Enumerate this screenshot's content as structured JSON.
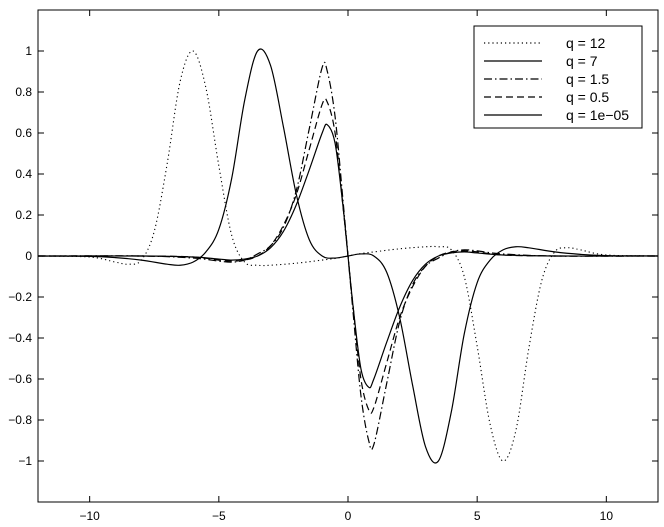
{
  "chart_data": {
    "type": "line",
    "xlim": [
      -12,
      12
    ],
    "ylim": [
      -1.2,
      1.2
    ],
    "x_ticks": [
      -10,
      -5,
      0,
      5,
      10
    ],
    "y_ticks": [
      -1,
      -0.8,
      -0.6,
      -0.4,
      -0.2,
      0,
      0.2,
      0.4,
      0.6,
      0.8,
      1
    ],
    "x_tick_labels": [
      "−10",
      "−5",
      "0",
      "5",
      "10"
    ],
    "y_tick_labels": [
      "−1",
      "−0.8",
      "−0.6",
      "−0.4",
      "−0.2",
      "0",
      "0.2",
      "0.4",
      "0.6",
      "0.8",
      "1"
    ],
    "grid": false,
    "legend_position": "top-right",
    "series": [
      {
        "name": "q = 12",
        "style": "dotted",
        "points": [
          [
            -12,
            0
          ],
          [
            -10,
            -0.005
          ],
          [
            -9,
            -0.03
          ],
          [
            -8.5,
            -0.04
          ],
          [
            -8,
            -0.02
          ],
          [
            -7.5,
            0.12
          ],
          [
            -7,
            0.45
          ],
          [
            -6.5,
            0.85
          ],
          [
            -6,
            1.0
          ],
          [
            -5.5,
            0.82
          ],
          [
            -5,
            0.44
          ],
          [
            -4.5,
            0.1
          ],
          [
            -4,
            -0.03
          ],
          [
            -3.5,
            -0.045
          ],
          [
            -3,
            -0.045
          ],
          [
            -2,
            -0.035
          ],
          [
            -1,
            -0.02
          ],
          [
            -0.5,
            -0.012
          ],
          [
            0,
            0
          ],
          [
            0.5,
            0.012
          ],
          [
            1,
            0.02
          ],
          [
            2,
            0.035
          ],
          [
            3,
            0.045
          ],
          [
            3.5,
            0.045
          ],
          [
            4,
            0.03
          ],
          [
            4.5,
            -0.1
          ],
          [
            5,
            -0.44
          ],
          [
            5.5,
            -0.82
          ],
          [
            6,
            -1.0
          ],
          [
            6.5,
            -0.85
          ],
          [
            7,
            -0.45
          ],
          [
            7.5,
            -0.12
          ],
          [
            8,
            0.02
          ],
          [
            8.5,
            0.04
          ],
          [
            9,
            0.03
          ],
          [
            10,
            0.005
          ],
          [
            12,
            0
          ]
        ]
      },
      {
        "name": "q = 7",
        "style": "solid",
        "points": [
          [
            -12,
            0
          ],
          [
            -10,
            -0.002
          ],
          [
            -9,
            -0.008
          ],
          [
            -8,
            -0.02
          ],
          [
            -7,
            -0.04
          ],
          [
            -6.5,
            -0.045
          ],
          [
            -6,
            -0.03
          ],
          [
            -5.5,
            0.02
          ],
          [
            -5,
            0.13
          ],
          [
            -4.5,
            0.38
          ],
          [
            -4,
            0.76
          ],
          [
            -3.5,
            1.0
          ],
          [
            -3,
            0.93
          ],
          [
            -2.5,
            0.63
          ],
          [
            -2,
            0.3
          ],
          [
            -1.5,
            0.08
          ],
          [
            -1,
            0.0
          ],
          [
            -0.5,
            -0.01
          ],
          [
            0,
            0
          ],
          [
            0.5,
            0.01
          ],
          [
            1,
            0.0
          ],
          [
            1.5,
            -0.08
          ],
          [
            2,
            -0.3
          ],
          [
            2.5,
            -0.63
          ],
          [
            3,
            -0.93
          ],
          [
            3.5,
            -1.0
          ],
          [
            4,
            -0.76
          ],
          [
            4.5,
            -0.38
          ],
          [
            5,
            -0.13
          ],
          [
            5.5,
            -0.02
          ],
          [
            6,
            0.03
          ],
          [
            6.5,
            0.045
          ],
          [
            7,
            0.04
          ],
          [
            8,
            0.02
          ],
          [
            9,
            0.008
          ],
          [
            10,
            0.002
          ],
          [
            12,
            0
          ]
        ]
      },
      {
        "name": "q = 1.5",
        "style": "dashdot",
        "points": [
          [
            -12,
            0
          ],
          [
            -8,
            0
          ],
          [
            -6,
            -0.01
          ],
          [
            -5,
            -0.025
          ],
          [
            -4.5,
            -0.03
          ],
          [
            -4,
            -0.02
          ],
          [
            -3.5,
            0.01
          ],
          [
            -3,
            0.05
          ],
          [
            -2.5,
            0.14
          ],
          [
            -2,
            0.32
          ],
          [
            -1.5,
            0.62
          ],
          [
            -1,
            0.92
          ],
          [
            -0.8,
            0.9
          ],
          [
            -0.5,
            0.68
          ],
          [
            -0.2,
            0.28
          ],
          [
            0,
            0
          ],
          [
            0.2,
            -0.28
          ],
          [
            0.5,
            -0.68
          ],
          [
            0.8,
            -0.9
          ],
          [
            1,
            -0.92
          ],
          [
            1.5,
            -0.62
          ],
          [
            2,
            -0.32
          ],
          [
            2.5,
            -0.14
          ],
          [
            3,
            -0.05
          ],
          [
            3.5,
            -0.01
          ],
          [
            4,
            0.02
          ],
          [
            4.5,
            0.03
          ],
          [
            5,
            0.025
          ],
          [
            6,
            0.01
          ],
          [
            8,
            0
          ],
          [
            12,
            0
          ]
        ]
      },
      {
        "name": "q = 0.5",
        "style": "dashed",
        "points": [
          [
            -12,
            0
          ],
          [
            -8,
            0
          ],
          [
            -6,
            -0.005
          ],
          [
            -5,
            -0.02
          ],
          [
            -4.5,
            -0.025
          ],
          [
            -4,
            -0.02
          ],
          [
            -3.5,
            0.0
          ],
          [
            -3,
            0.05
          ],
          [
            -2.5,
            0.15
          ],
          [
            -2,
            0.3
          ],
          [
            -1.5,
            0.52
          ],
          [
            -1,
            0.74
          ],
          [
            -0.8,
            0.75
          ],
          [
            -0.5,
            0.6
          ],
          [
            -0.2,
            0.25
          ],
          [
            0,
            0
          ],
          [
            0.2,
            -0.25
          ],
          [
            0.5,
            -0.6
          ],
          [
            0.8,
            -0.75
          ],
          [
            1,
            -0.74
          ],
          [
            1.5,
            -0.52
          ],
          [
            2,
            -0.3
          ],
          [
            2.5,
            -0.15
          ],
          [
            3,
            -0.05
          ],
          [
            3.5,
            0.0
          ],
          [
            4,
            0.02
          ],
          [
            4.5,
            0.025
          ],
          [
            5,
            0.02
          ],
          [
            6,
            0.005
          ],
          [
            8,
            0
          ],
          [
            12,
            0
          ]
        ]
      },
      {
        "name": "q = 1e−05",
        "style": "solid",
        "points": [
          [
            -12,
            0
          ],
          [
            -8,
            0
          ],
          [
            -6,
            -0.005
          ],
          [
            -5,
            -0.015
          ],
          [
            -4.5,
            -0.02
          ],
          [
            -4,
            -0.015
          ],
          [
            -3.5,
            0.0
          ],
          [
            -3,
            0.04
          ],
          [
            -2.5,
            0.12
          ],
          [
            -2,
            0.25
          ],
          [
            -1.5,
            0.42
          ],
          [
            -1,
            0.6
          ],
          [
            -0.8,
            0.64
          ],
          [
            -0.5,
            0.55
          ],
          [
            -0.2,
            0.25
          ],
          [
            0,
            0
          ],
          [
            0.2,
            -0.25
          ],
          [
            0.5,
            -0.55
          ],
          [
            0.8,
            -0.64
          ],
          [
            1,
            -0.6
          ],
          [
            1.5,
            -0.42
          ],
          [
            2,
            -0.25
          ],
          [
            2.5,
            -0.12
          ],
          [
            3,
            -0.04
          ],
          [
            3.5,
            0.0
          ],
          [
            4,
            0.015
          ],
          [
            4.5,
            0.02
          ],
          [
            5,
            0.015
          ],
          [
            6,
            0.005
          ],
          [
            8,
            0
          ],
          [
            12,
            0
          ]
        ]
      }
    ]
  }
}
